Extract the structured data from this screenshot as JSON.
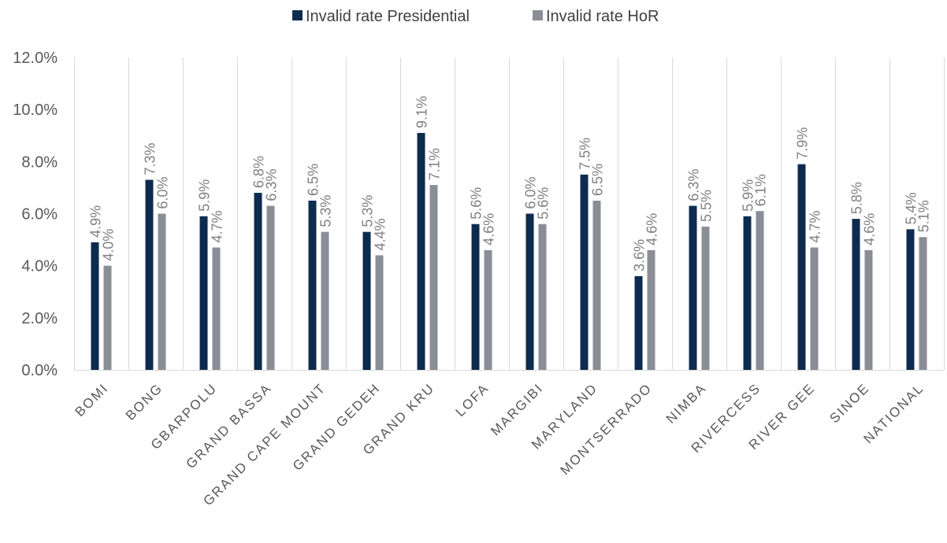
{
  "chart_data": {
    "type": "bar",
    "categories": [
      "BOMI",
      "BONG",
      "GBARPOLU",
      "GRAND BASSA",
      "GRAND CAPE MOUNT",
      "GRAND GEDEH",
      "GRAND KRU",
      "LOFA",
      "MARGIBI",
      "MARYLAND",
      "MONTSERRADO",
      "NIMBA",
      "RIVERCESS",
      "RIVER GEE",
      "SINOE",
      "NATIONAL"
    ],
    "series": [
      {
        "name": "Invalid rate Presidential",
        "color": "#0d2b4e",
        "values": [
          4.9,
          7.3,
          5.9,
          6.8,
          6.5,
          5.3,
          9.1,
          5.6,
          6.0,
          7.5,
          3.6,
          6.3,
          5.9,
          7.9,
          5.8,
          5.4
        ],
        "labels": [
          "4.9%",
          "7.3%",
          "5.9%",
          "6.8%",
          "6.5%",
          "5.3%",
          "9.1%",
          "5.6%",
          "6.0%",
          "7.5%",
          "3.6%",
          "6.3%",
          "5.9%",
          "7.9%",
          "5.8%",
          "5.4%"
        ]
      },
      {
        "name": "Invalid rate HoR",
        "color": "#8a8d96",
        "values": [
          4.0,
          6.0,
          4.7,
          6.3,
          5.3,
          4.4,
          7.1,
          4.6,
          5.6,
          6.5,
          4.6,
          5.5,
          6.1,
          4.7,
          4.6,
          5.1
        ],
        "labels": [
          "4.0%",
          "6.0%",
          "4.7%",
          "6.3%",
          "5.3%",
          "4.4%",
          "7.1%",
          "4.6%",
          "5.6%",
          "6.5%",
          "4.6%",
          "5.5%",
          "6.1%",
          "4.7%",
          "4.6%",
          "5.1%"
        ]
      }
    ],
    "y_ticks": [
      "0.0%",
      "2.0%",
      "4.0%",
      "6.0%",
      "8.0%",
      "10.0%",
      "12.0%"
    ],
    "ylim": [
      0,
      12
    ],
    "grid": "vertical category separators",
    "legend": "top-center",
    "title": "",
    "xlabel": "",
    "ylabel": ""
  }
}
